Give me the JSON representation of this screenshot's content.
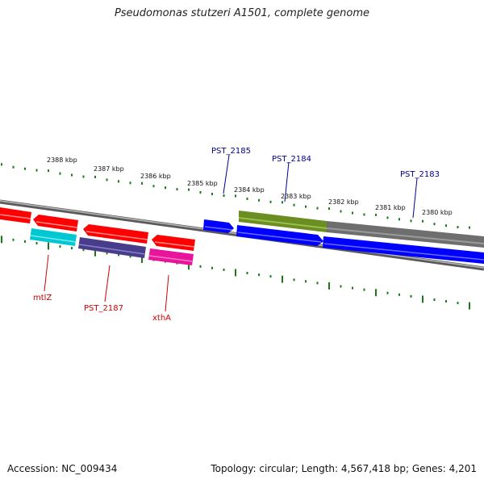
{
  "title": "Pseudomonas stutzeri A1501, complete genome",
  "footer": {
    "accession": "Accession: NC_009434",
    "summary": "Topology: circular; Length: 4,567,418 bp; Genes: 4,201"
  },
  "colors": {
    "backbone": "#8a8a8a",
    "ticks": "#1a7a1a",
    "forward_gene": "#0000ff",
    "reverse_gene": "#ff0000",
    "feature_label_forward": "#00008b",
    "feature_label_reverse": "#cc0000",
    "hit_green": "#6b8e23",
    "hit_gray": "#707070",
    "cyan_gene": "#00c8d2",
    "purple_gene": "#483d8b",
    "pink_gene": "#e8149b"
  },
  "ruler": {
    "labels": [
      "2388 kbp",
      "2387 kbp",
      "2386 kbp",
      "2385 kbp",
      "2384 kbp",
      "2383 kbp",
      "2382 kbp",
      "2381 kbp",
      "2380 kbp"
    ]
  },
  "feature_labels": {
    "forward": [
      "PST_2185",
      "PST_2184",
      "PST_2183"
    ],
    "reverse": [
      "mtlZ",
      "PST_2187",
      "xthA"
    ]
  }
}
